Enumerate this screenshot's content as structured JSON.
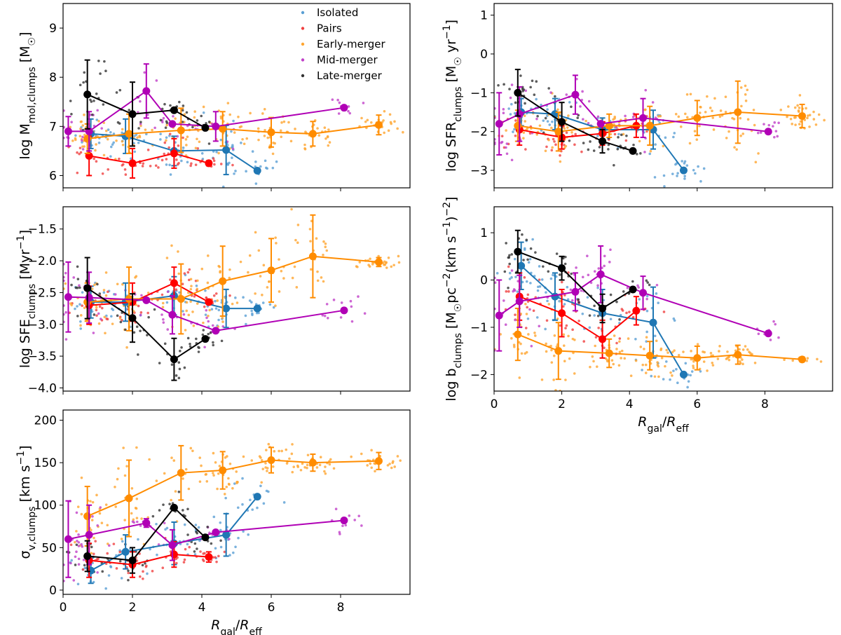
{
  "chart_data": [
    {
      "type": "scatter",
      "panel": "top-left",
      "ylabel": "log M_mol,clumps [M☉]",
      "ylabel_parts": {
        "pre": "log M",
        "sub": "mol,clumps",
        "post": " [M",
        "sym": "☉",
        "end": "]"
      },
      "xlabel": "",
      "xlim": [
        0,
        10
      ],
      "ylim": [
        5.75,
        9.5
      ],
      "xticks": [
        0,
        2,
        4,
        6,
        8
      ],
      "yticks": [
        6,
        7,
        8,
        9
      ],
      "yticklabels": [
        "6",
        "7",
        "8",
        "9"
      ],
      "show_xticklabels": false,
      "legend": {
        "placement": "top-right",
        "entries": [
          "Isolated",
          "Pairs",
          "Early-merger",
          "Mid-merger",
          "Late-merger"
        ]
      },
      "series": [
        {
          "name": "Isolated",
          "x": [
            0.8,
            1.8,
            3.2,
            4.7,
            5.6
          ],
          "y": [
            6.85,
            6.8,
            6.5,
            6.52,
            6.1
          ],
          "err": [
            0.3,
            0.35,
            0.3,
            0.5,
            0
          ]
        },
        {
          "name": "Pairs",
          "x": [
            0.75,
            2.0,
            3.2,
            4.2
          ],
          "y": [
            6.4,
            6.25,
            6.45,
            6.25
          ],
          "err": [
            0.4,
            0.3,
            0.3,
            0.05
          ]
        },
        {
          "name": "Early-merger",
          "x": [
            0.7,
            1.9,
            3.4,
            4.6,
            6.0,
            7.2,
            9.1
          ],
          "y": [
            6.75,
            6.85,
            6.92,
            6.95,
            6.88,
            6.85,
            7.03
          ],
          "err": [
            0.3,
            0.4,
            0.45,
            0.35,
            0.3,
            0.25,
            0.2
          ]
        },
        {
          "name": "Mid-merger",
          "x": [
            0.15,
            0.75,
            2.4,
            3.15,
            4.4,
            8.1
          ],
          "y": [
            6.9,
            6.9,
            7.72,
            7.05,
            7.0,
            7.38
          ],
          "err": [
            0.3,
            0.4,
            0.55,
            0,
            0.3,
            0
          ]
        },
        {
          "name": "Late-merger",
          "x": [
            0.7,
            2.0,
            3.2,
            4.1
          ],
          "y": [
            7.65,
            7.25,
            7.33,
            6.97
          ],
          "err": [
            0.7,
            0.65,
            0,
            0
          ]
        }
      ]
    },
    {
      "type": "scatter",
      "panel": "top-right",
      "ylabel": "log SFR_clumps [M☉ yr⁻¹]",
      "ylabel_parts": {
        "pre": "log SFR",
        "sub": "clumps",
        "post": " [M",
        "sym": "☉",
        "end": " yr",
        "sup": "−1",
        "close": "]"
      },
      "xlabel": "",
      "xlim": [
        0,
        10
      ],
      "ylim": [
        -3.45,
        1.3
      ],
      "xticks": [
        0,
        2,
        4,
        6,
        8
      ],
      "yticks": [
        -3,
        -2,
        -1,
        0,
        1
      ],
      "yticklabels": [
        "−3",
        "−2",
        "−1",
        "0",
        "1"
      ],
      "show_xticklabels": false,
      "series": [
        {
          "name": "Isolated",
          "x": [
            0.8,
            1.8,
            3.2,
            4.7,
            5.6
          ],
          "y": [
            -1.5,
            -1.55,
            -1.95,
            -1.95,
            -3.0
          ],
          "err": [
            0.35,
            0.4,
            0.3,
            0.5,
            0
          ]
        },
        {
          "name": "Pairs",
          "x": [
            0.75,
            2.0,
            3.2,
            4.2
          ],
          "y": [
            -1.95,
            -2.15,
            -2.05,
            -1.85
          ],
          "err": [
            0.4,
            0.3,
            0.3,
            0.3
          ]
        },
        {
          "name": "Early-merger",
          "x": [
            0.7,
            1.9,
            3.4,
            4.6,
            6.0,
            7.2,
            9.1
          ],
          "y": [
            -1.85,
            -2.0,
            -1.85,
            -1.85,
            -1.65,
            -1.5,
            -1.6
          ],
          "err": [
            0.4,
            0.5,
            0.3,
            0.5,
            0.45,
            0.8,
            0.3
          ]
        },
        {
          "name": "Mid-merger",
          "x": [
            0.15,
            0.75,
            2.4,
            3.15,
            4.4,
            8.1
          ],
          "y": [
            -1.8,
            -1.55,
            -1.05,
            -1.8,
            -1.65,
            -2.0
          ],
          "err": [
            0.8,
            0.7,
            0.5,
            0,
            0.5,
            0
          ]
        },
        {
          "name": "Late-merger",
          "x": [
            0.7,
            2.0,
            3.2,
            4.1
          ],
          "y": [
            -1.0,
            -1.75,
            -2.25,
            -2.5
          ],
          "err": [
            0.6,
            0.5,
            0.3,
            0
          ]
        }
      ]
    },
    {
      "type": "scatter",
      "panel": "middle-left",
      "ylabel": "log SFE_clumps [Myr⁻¹]",
      "ylabel_parts": {
        "pre": "log SFE",
        "sub": "clumps",
        "post": " [Myr",
        "sup": "−1",
        "close": "]"
      },
      "xlabel": "",
      "xlim": [
        0,
        10
      ],
      "ylim": [
        -4.05,
        -1.15
      ],
      "xticks": [
        0,
        2,
        4,
        6,
        8
      ],
      "yticks": [
        -4.0,
        -3.5,
        -3.0,
        -2.5,
        -2.0,
        -1.5
      ],
      "yticklabels": [
        "−4.0",
        "−3.5",
        "−3.0",
        "−2.5",
        "−2.0",
        "−1.5"
      ],
      "show_xticklabels": false,
      "series": [
        {
          "name": "Isolated",
          "x": [
            0.8,
            1.8,
            3.2,
            4.7,
            5.6
          ],
          "y": [
            -2.65,
            -2.65,
            -2.55,
            -2.75,
            -2.75
          ],
          "err": [
            0.25,
            0.3,
            0.3,
            0.3,
            0
          ]
        },
        {
          "name": "Pairs",
          "x": [
            0.75,
            2.0,
            3.2,
            4.2
          ],
          "y": [
            -2.7,
            -2.65,
            -2.35,
            -2.65
          ],
          "err": [
            0.3,
            0.3,
            0.25,
            0
          ]
        },
        {
          "name": "Early-merger",
          "x": [
            0.7,
            1.9,
            3.4,
            4.6,
            6.0,
            7.2,
            9.1
          ],
          "y": [
            -2.65,
            -2.6,
            -2.6,
            -2.32,
            -2.15,
            -1.93,
            -2.02
          ],
          "err": [
            0.3,
            0.5,
            0.55,
            0.55,
            0.5,
            0.65,
            0.07
          ]
        },
        {
          "name": "Mid-merger",
          "x": [
            0.15,
            0.75,
            2.4,
            3.15,
            4.4,
            8.1
          ],
          "y": [
            -2.57,
            -2.58,
            -2.62,
            -2.85,
            -3.1,
            -2.78
          ],
          "err": [
            0.55,
            0.4,
            0,
            0.3,
            0,
            0
          ]
        },
        {
          "name": "Late-merger",
          "x": [
            0.7,
            2.0,
            3.2,
            4.1
          ],
          "y": [
            -2.43,
            -2.9,
            -3.55,
            -3.23
          ],
          "err": [
            0.48,
            0.38,
            0.33,
            0
          ]
        }
      ]
    },
    {
      "type": "scatter",
      "panel": "middle-right",
      "ylabel": "log b_clumps [M☉pc⁻²(km s⁻¹)⁻²]",
      "ylabel_parts": {
        "pre": "log b",
        "sub": "clumps",
        "post": " [M",
        "sym": "☉",
        "end": "pc",
        "sup": "−2",
        "mid": "(km s",
        "sup2": "−1",
        "mid2": ")",
        "sup3": "−2",
        "close": "]"
      },
      "xlabel": "R_gal/R_eff",
      "xlim": [
        0,
        10
      ],
      "ylim": [
        -2.35,
        1.55
      ],
      "xticks": [
        0,
        2,
        4,
        6,
        8
      ],
      "yticks": [
        -2,
        -1,
        0,
        1
      ],
      "yticklabels": [
        "−2",
        "−1",
        "0",
        "1"
      ],
      "show_xticklabels": true,
      "xticklabels": [
        "0",
        "2",
        "4",
        "6",
        "8"
      ],
      "series": [
        {
          "name": "Isolated",
          "x": [
            0.8,
            1.8,
            3.2,
            4.7,
            5.6
          ],
          "y": [
            0.3,
            -0.35,
            -0.7,
            -0.9,
            -2.0
          ],
          "err": [
            0.5,
            0.5,
            0.5,
            0.75,
            0
          ]
        },
        {
          "name": "Pairs",
          "x": [
            0.75,
            2.0,
            3.2,
            4.2
          ],
          "y": [
            -0.35,
            -0.7,
            -1.25,
            -0.65
          ],
          "err": [
            0.5,
            0.5,
            0.4,
            0.3
          ]
        },
        {
          "name": "Early-merger",
          "x": [
            0.7,
            1.9,
            3.4,
            4.6,
            6.0,
            7.2,
            9.1
          ],
          "y": [
            -1.15,
            -1.5,
            -1.55,
            -1.6,
            -1.65,
            -1.58,
            -1.68
          ],
          "err": [
            0.55,
            0.6,
            0.3,
            0.3,
            0.25,
            0.2,
            0.05
          ]
        },
        {
          "name": "Mid-merger",
          "x": [
            0.15,
            0.75,
            2.4,
            3.15,
            4.4,
            8.1
          ],
          "y": [
            -0.75,
            -0.45,
            -0.25,
            0.12,
            -0.27,
            -1.13
          ],
          "err": [
            0.75,
            0.55,
            0.4,
            0.6,
            0.35,
            0
          ]
        },
        {
          "name": "Late-merger",
          "x": [
            0.7,
            2.0,
            3.2,
            4.1
          ],
          "y": [
            0.6,
            0.25,
            -0.6,
            -0.2
          ],
          "err": [
            0.45,
            0.25,
            0.3,
            0
          ]
        }
      ]
    },
    {
      "type": "scatter",
      "panel": "bottom-left",
      "ylabel": "σ_v,clumps [km s⁻¹]",
      "ylabel_parts": {
        "pre": "σ",
        "sub": "v,clumps",
        "post": " [km s",
        "sup": "−1",
        "close": "]"
      },
      "xlabel": "R_gal/R_eff",
      "xlim": [
        0,
        10
      ],
      "ylim": [
        -5,
        212
      ],
      "xticks": [
        0,
        2,
        4,
        6,
        8
      ],
      "yticks": [
        0,
        50,
        100,
        150,
        200
      ],
      "yticklabels": [
        "0",
        "50",
        "100",
        "150",
        "200"
      ],
      "show_xticklabels": true,
      "xticklabels": [
        "0",
        "2",
        "4",
        "6",
        "8"
      ],
      "series": [
        {
          "name": "Isolated",
          "x": [
            0.8,
            1.8,
            3.2,
            4.7,
            5.6
          ],
          "y": [
            23,
            45,
            55,
            65,
            110
          ],
          "err": [
            15,
            20,
            25,
            25,
            0
          ]
        },
        {
          "name": "Pairs",
          "x": [
            0.75,
            2.0,
            3.2,
            4.2
          ],
          "y": [
            35,
            30,
            42,
            39
          ],
          "err": [
            20,
            15,
            15,
            6
          ]
        },
        {
          "name": "Early-merger",
          "x": [
            0.7,
            1.9,
            3.4,
            4.6,
            6.0,
            7.2,
            9.1
          ],
          "y": [
            87,
            108,
            138,
            141,
            153,
            150,
            152
          ],
          "err": [
            35,
            45,
            32,
            22,
            15,
            10,
            10
          ]
        },
        {
          "name": "Mid-merger",
          "x": [
            0.15,
            0.75,
            2.4,
            3.15,
            4.4,
            8.1
          ],
          "y": [
            60,
            65,
            79,
            53,
            68,
            82
          ],
          "err": [
            45,
            35,
            5,
            18,
            0,
            0
          ]
        },
        {
          "name": "Late-merger",
          "x": [
            0.7,
            2.0,
            3.2,
            4.1
          ],
          "y": [
            40,
            35,
            97,
            62
          ],
          "err": [
            18,
            15,
            0,
            0
          ]
        }
      ]
    }
  ],
  "colors": {
    "Isolated": "#1f77b4",
    "Pairs": "#ff0000",
    "Early-merger": "#ff8c00",
    "Mid-merger": "#b000b5",
    "Late-merger": "#000000",
    "Isolated_scatter": "#5a9fd4",
    "Pairs_scatter": "#f04040",
    "Early-merger_scatter": "#ffa530",
    "Mid-merger_scatter": "#c040c8",
    "Late-merger_scatter": "#333333"
  },
  "xlabel_parts": {
    "r": "R",
    "rsub": "gal",
    "slash": "/",
    "r2": "R",
    "r2sub": "eff"
  }
}
